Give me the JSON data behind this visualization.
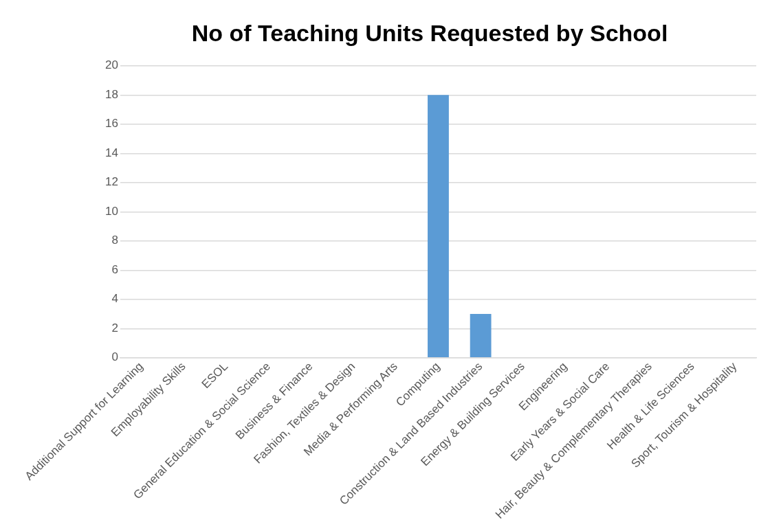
{
  "chart_data": {
    "type": "bar",
    "title": "No of Teaching Units Requested by School",
    "categories": [
      "Additional Support for Learning",
      "Employability Skills",
      "ESOL",
      "General Education & Social Science",
      "Business & Finance",
      "Fashion, Textiles & Design",
      "Media & Performing Arts",
      "Computing",
      "Construction & Land Based Industries",
      "Energy & Building Services",
      "Engineering",
      "Early Years & Social Care",
      "Hair, Beauty & Complementary Therapies",
      "Health & Life Sciences",
      "Sport, Tourism & Hospitality"
    ],
    "values": [
      0,
      0,
      0,
      0,
      0,
      0,
      0,
      18,
      3,
      0,
      0,
      0,
      0,
      0,
      0
    ],
    "color": "#5b9bd5",
    "ylim": [
      0,
      20
    ],
    "yticks": [
      0,
      2,
      4,
      6,
      8,
      10,
      12,
      14,
      16,
      18,
      20
    ],
    "grid": "y",
    "legend": false
  }
}
